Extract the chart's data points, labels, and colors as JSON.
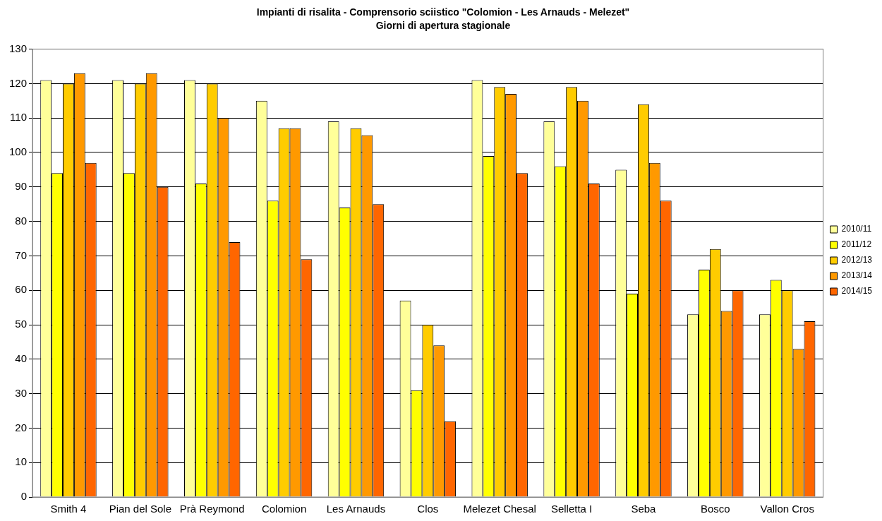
{
  "chart_data": {
    "type": "bar",
    "title": "Impianti di risalita - Comprensorio sciistico \"Colomion - Les Arnauds - Melezet\"",
    "subtitle": "Giorni di apertura stagionale",
    "categories": [
      "Smith 4",
      "Pian del Sole",
      "Prà Reymond",
      "Colomion",
      "Les Arnauds",
      "Clos",
      "Melezet Chesal",
      "Selletta I",
      "Seba",
      "Bosco",
      "Vallon Cros"
    ],
    "series": [
      {
        "name": "2010/11",
        "color": "#ffff99",
        "values": [
          121,
          121,
          121,
          115,
          109,
          57,
          121,
          109,
          95,
          53,
          53
        ]
      },
      {
        "name": "2011/12",
        "color": "#ffff00",
        "values": [
          94,
          94,
          91,
          86,
          84,
          31,
          99,
          96,
          59,
          66,
          63
        ]
      },
      {
        "name": "2012/13",
        "color": "#ffcc00",
        "values": [
          120,
          120,
          120,
          107,
          107,
          50,
          119,
          119,
          114,
          72,
          60
        ]
      },
      {
        "name": "2013/14",
        "color": "#ff9900",
        "values": [
          123,
          123,
          110,
          107,
          105,
          44,
          117,
          115,
          97,
          54,
          43
        ]
      },
      {
        "name": "2014/15",
        "color": "#ff6600",
        "values": [
          97,
          90,
          74,
          69,
          85,
          22,
          94,
          91,
          86,
          60,
          51
        ]
      }
    ],
    "ylim": [
      0,
      130
    ],
    "yticks": [
      0,
      10,
      20,
      30,
      40,
      50,
      60,
      70,
      80,
      90,
      100,
      110,
      120,
      130
    ],
    "grid": "y",
    "legend": "right"
  }
}
